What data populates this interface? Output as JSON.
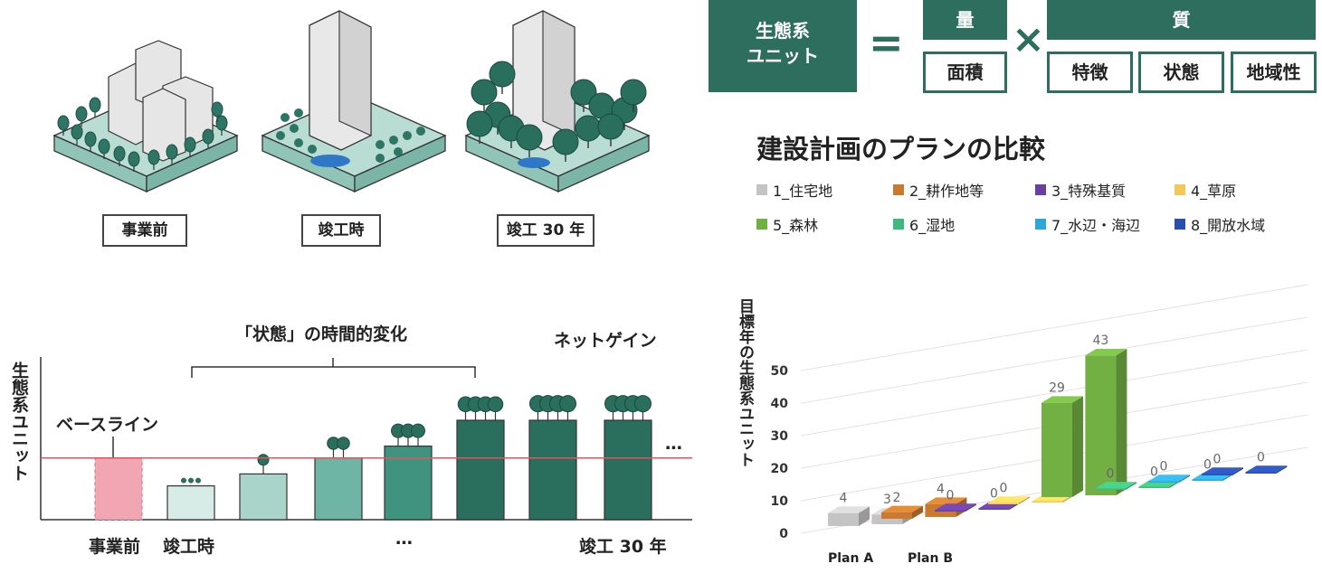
{
  "stages": {
    "before": "事業前",
    "completion": "竣工時",
    "after30": "竣工 30 年"
  },
  "formula": {
    "unit_label": "生態系\nユニット",
    "equals": "=",
    "times": "×",
    "quantity_header": "量",
    "quality_header": "質",
    "quantity_items": [
      "面積"
    ],
    "quality_items": [
      "特徴",
      "状態",
      "地域性"
    ]
  },
  "timeline": {
    "y_label": "生態系ユニット",
    "baseline_label": "ベースライン",
    "bracket_label": "「状態」の時間的変化",
    "net_gain_label": "ネットゲイン",
    "x_labels": [
      "事業前",
      "竣工時",
      "…",
      "竣工 30 年"
    ],
    "ellipsis": "…",
    "bars": [
      {
        "stage": "baseline",
        "value": 0.62,
        "color": "#f2a6b4"
      },
      {
        "stage": "t1",
        "value": 0.34,
        "color": "#d7ece7"
      },
      {
        "stage": "t2",
        "value": 0.46,
        "color": "#a9d4ca"
      },
      {
        "stage": "t3",
        "value": 0.62,
        "color": "#6fb5a6"
      },
      {
        "stage": "t4",
        "value": 0.74,
        "color": "#3f937f"
      },
      {
        "stage": "t5",
        "value": 1.0,
        "color": "#2a6e5d"
      },
      {
        "stage": "t6",
        "value": 1.0,
        "color": "#2a6e5d"
      },
      {
        "stage": "t7",
        "value": 1.0,
        "color": "#2a6e5d"
      }
    ],
    "colors": {
      "baseline_line": "#e0545e",
      "accent": "#2a6e5d"
    }
  },
  "chart_data": {
    "type": "bar",
    "title": "建設計画のプランの比較",
    "ylabel": "目標年の生態系ユニット",
    "xlabel": "",
    "ylim": [
      0,
      50
    ],
    "yticks": [
      0,
      10,
      20,
      30,
      40,
      50
    ],
    "categories": [
      "Plan A",
      "Plan B"
    ],
    "legend_placement": "top",
    "series": [
      {
        "name": "1_住宅地",
        "color": "#c4c4c4",
        "values": [
          4,
          3
        ]
      },
      {
        "name": "2_耕作地等",
        "color": "#c97a30",
        "values": [
          2,
          4
        ]
      },
      {
        "name": "3_特殊基質",
        "color": "#6a3fa0",
        "values": [
          0,
          0
        ]
      },
      {
        "name": "4_草原",
        "color": "#f2c85a",
        "values": [
          0,
          0
        ]
      },
      {
        "name": "5_森林",
        "color": "#72b043",
        "values": [
          29,
          43
        ]
      },
      {
        "name": "6_湿地",
        "color": "#3fba7a",
        "values": [
          0,
          0
        ]
      },
      {
        "name": "7_水辺・海辺",
        "color": "#2ea7d8",
        "values": [
          0,
          0
        ]
      },
      {
        "name": "8_開放水域",
        "color": "#2b4fb0",
        "values": [
          0,
          0
        ]
      }
    ],
    "data_labels": [
      "4",
      "2",
      "3",
      "0",
      "4",
      "0",
      "0",
      "29",
      "43",
      "0",
      "0",
      "0",
      "0"
    ]
  }
}
